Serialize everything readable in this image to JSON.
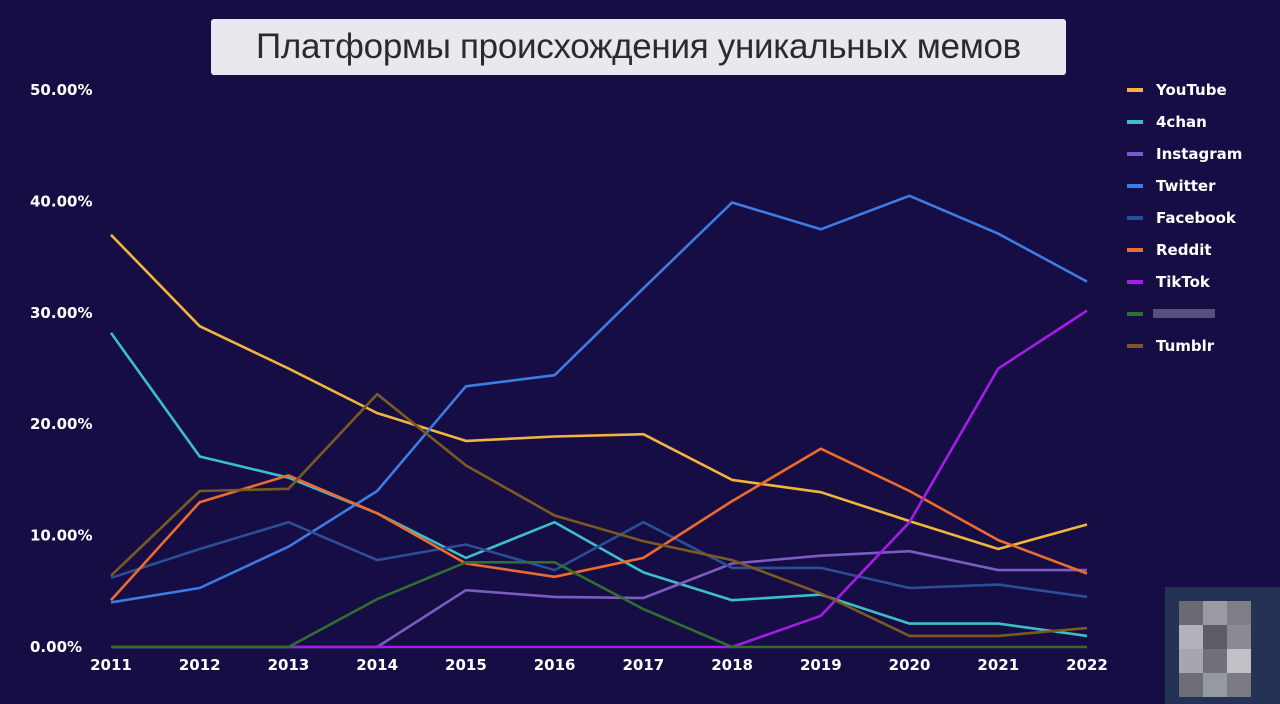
{
  "title": "Платформы происхождения уникальных мемов",
  "chart_data": {
    "type": "line",
    "title": "Платформы происхождения уникальных мемов",
    "x": [
      "2011",
      "2012",
      "2013",
      "2014",
      "2015",
      "2016",
      "2017",
      "2018",
      "2019",
      "2020",
      "2021",
      "2022"
    ],
    "ylim": [
      0,
      50
    ],
    "yticks": [
      "0.00%",
      "10.00%",
      "20.00%",
      "30.00%",
      "40.00%",
      "50.00%"
    ],
    "grid": false,
    "legend_position": "right",
    "series": [
      {
        "name": "YouTube",
        "color": "#f2b53c",
        "values": [
          37,
          28.8,
          25,
          21,
          18.5,
          18.9,
          19.1,
          15,
          13.9,
          11.3,
          8.8,
          11
        ]
      },
      {
        "name": "4chan",
        "color": "#3bbfc8",
        "values": [
          28.2,
          17.1,
          15.2,
          12,
          8,
          11.2,
          6.7,
          4.2,
          4.7,
          2.1,
          2.1,
          1
        ]
      },
      {
        "name": "Instagram",
        "color": "#7b5cc0",
        "values": [
          0,
          0,
          0,
          0,
          5.1,
          4.5,
          4.4,
          7.5,
          8.2,
          8.6,
          6.9,
          6.9
        ]
      },
      {
        "name": "Twitter",
        "color": "#3d7ce4",
        "values": [
          4,
          5.3,
          9,
          14,
          23.4,
          24.4,
          32.2,
          39.9,
          37.5,
          40.5,
          37.1,
          32.8
        ]
      },
      {
        "name": "Facebook",
        "color": "#2c4e96",
        "values": [
          6.2,
          8.8,
          11.2,
          7.8,
          9.2,
          6.9,
          11.2,
          7.1,
          7.1,
          5.3,
          5.6,
          4.5
        ]
      },
      {
        "name": "Reddit",
        "color": "#ec6b2e",
        "values": [
          4.2,
          13,
          15.4,
          12,
          7.5,
          6.3,
          8,
          13.1,
          17.8,
          14,
          9.6,
          6.6
        ]
      },
      {
        "name": "TikTok",
        "color": "#a41de6",
        "values": [
          0,
          0,
          0,
          0,
          0,
          0,
          0,
          0,
          2.8,
          11.2,
          25,
          30.2
        ]
      },
      {
        "name": "",
        "color": "#2f6f2f",
        "values": [
          0,
          0,
          0,
          4.3,
          7.6,
          7.6,
          3.4,
          0,
          0,
          0,
          0,
          0
        ]
      },
      {
        "name": "Tumblr",
        "color": "#7a5a1f",
        "values": [
          6.4,
          14,
          14.2,
          22.7,
          16.3,
          11.8,
          9.5,
          7.8,
          4.8,
          1,
          1,
          1.7
        ]
      }
    ]
  }
}
